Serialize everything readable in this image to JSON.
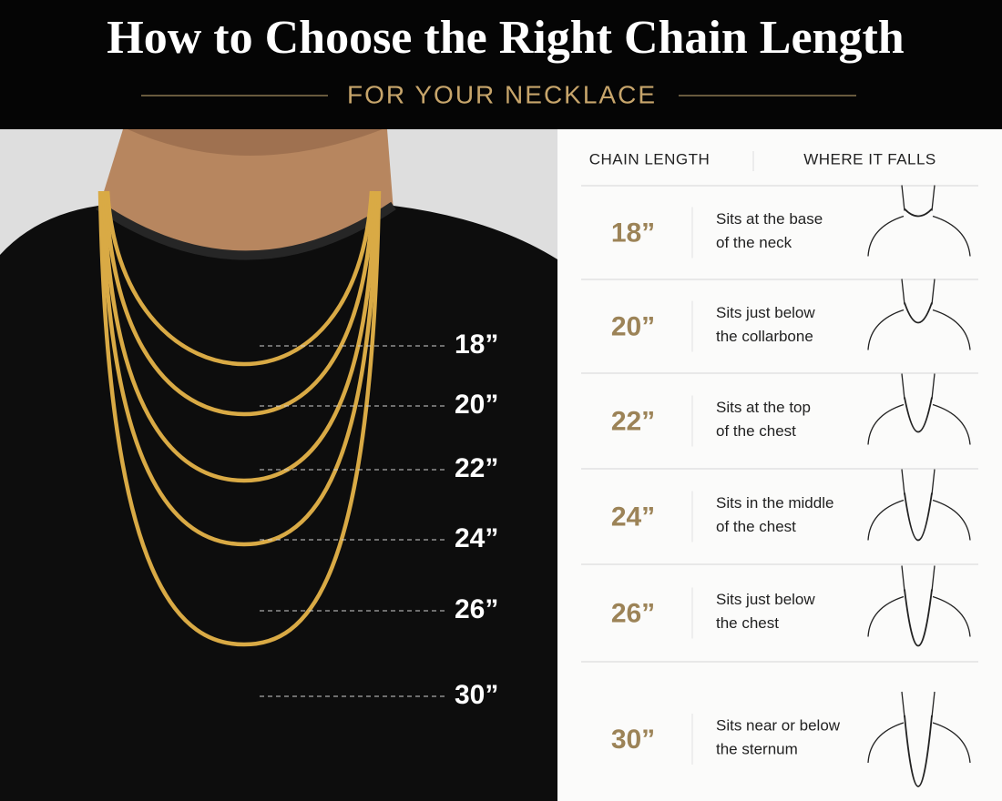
{
  "header": {
    "title": "How to Choose the Right Chain Length",
    "subtitle": "FOR YOUR NECKLACE"
  },
  "photo": {
    "labels": [
      "18”",
      "20”",
      "22”",
      "24”",
      "26”",
      "30”"
    ]
  },
  "table": {
    "columns": [
      "CHAIN LENGTH",
      "WHERE IT FALLS"
    ],
    "rows": [
      {
        "length": "18”",
        "description": [
          "Sits at the base",
          "of the neck"
        ]
      },
      {
        "length": "20”",
        "description": [
          "Sits just below",
          "the collarbone"
        ]
      },
      {
        "length": "22”",
        "description": [
          "Sits at the top",
          "of the chest"
        ]
      },
      {
        "length": "24”",
        "description": [
          "Sits in the middle",
          "of the chest"
        ]
      },
      {
        "length": "26”",
        "description": [
          "Sits just below",
          "the chest"
        ]
      },
      {
        "length": "30”",
        "description": [
          "Sits near or below",
          "the sternum"
        ]
      }
    ]
  }
}
